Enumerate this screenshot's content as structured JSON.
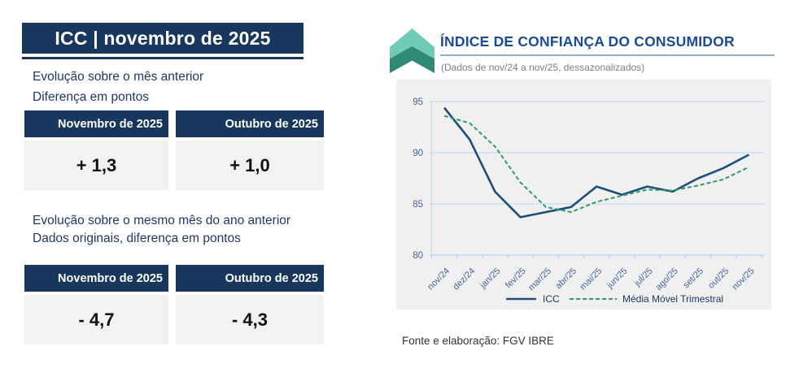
{
  "left_panel": {
    "title": "ICC | novembro de 2025",
    "section_month": {
      "line1": "Evolução sobre o mês anterior",
      "line2": "Diferença em pontos",
      "table": {
        "headers": [
          "Novembro de 2025",
          "Outubro de 2025"
        ],
        "values": [
          "+ 1,3",
          "+ 1,0"
        ]
      }
    },
    "section_year": {
      "line1": "Evolução sobre o mesmo mês do ano anterior",
      "line2": "Dados originais, diferença em pontos",
      "table": {
        "headers": [
          "Novembro de 2025",
          "Outubro de 2025"
        ],
        "values": [
          "- 4,7",
          "- 4,3"
        ]
      }
    }
  },
  "right_panel": {
    "logo": "fgv-double-chevron-up",
    "title": "ÍNDICE DE CONFIANÇA DO CONSUMIDOR",
    "subtitle": "(Dados de nov/24 a nov/25, dessazonalizados)",
    "source": "Fonte e elaboração: FGV IBRE"
  },
  "chart_data": {
    "type": "line",
    "title": "ÍNDICE DE CONFIANÇA DO CONSUMIDOR",
    "categories": [
      "nov/24",
      "dez/24",
      "jan/25",
      "fev/25",
      "mar/25",
      "abr/25",
      "mai/25",
      "jun/25",
      "jul/25",
      "ago/25",
      "set/25",
      "out/25",
      "nov/25"
    ],
    "series": [
      {
        "name": "ICC",
        "style": "solid",
        "color": "#1F4E79",
        "values": [
          94.4,
          91.3,
          86.2,
          83.7,
          84.2,
          84.7,
          86.7,
          85.9,
          86.7,
          86.2,
          87.5,
          88.5,
          89.8
        ]
      },
      {
        "name": "Média Móvel Trimestral",
        "style": "dashed",
        "color": "#2E9C68",
        "values": [
          93.6,
          92.9,
          90.6,
          87.1,
          84.7,
          84.2,
          85.2,
          85.8,
          86.4,
          86.3,
          86.8,
          87.4,
          88.6
        ]
      }
    ],
    "ylim": [
      80,
      95
    ],
    "yticks": [
      80,
      85,
      90,
      95
    ],
    "grid": true,
    "legend_position": "bottom"
  },
  "colors": {
    "navy_header": "#17375D",
    "title_blue": "#1A4B96",
    "text_blue": "#1F3864",
    "gridline": "#BDD7EE",
    "axis_label": "#44679B",
    "legend_text": "#17375D",
    "icc_line": "#1F4E79",
    "moving_avg_line": "#2E9C68",
    "panel_bg": "#F0F0F0",
    "cell_bg": "#F2F2F2",
    "logo_light": "#6FCBB4",
    "logo_dark": "#2F8A74"
  }
}
